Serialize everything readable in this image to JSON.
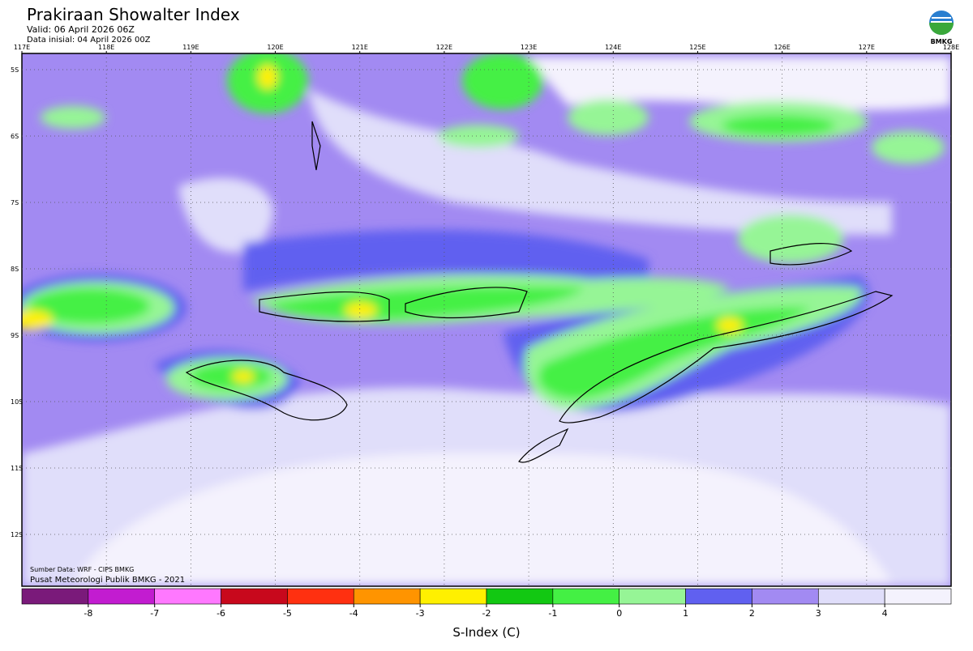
{
  "header": {
    "title": "Prakiraan Showalter Index",
    "valid": "Valid: 06 April 2026 06Z",
    "init": "Data inisial: 04 April 2026 00Z"
  },
  "logo": "BMKG",
  "map": {
    "lon_labels": [
      "117E",
      "118E",
      "119E",
      "120E",
      "121E",
      "122E",
      "123E",
      "124E",
      "125E",
      "126E",
      "127E",
      "128E"
    ],
    "lat_labels": [
      "5S",
      "6S",
      "7S",
      "8S",
      "9S",
      "10S",
      "11S",
      "12S"
    ]
  },
  "footer": {
    "source": "Sumber Data: WRF - CIPS BMKG",
    "credit": "Pusat Meteorologi Publik BMKG - 2021"
  },
  "colorbar": {
    "colors": [
      "#7a1a7a",
      "#c21cd0",
      "#ff78ff",
      "#c8081c",
      "#ff3010",
      "#ff9400",
      "#fff000",
      "#12c812",
      "#44f044",
      "#96f596",
      "#6060f0",
      "#a28af2",
      "#e0defa",
      "#f4f2fd"
    ],
    "ticks": [
      -8,
      -7,
      -6,
      -5,
      -4,
      -3,
      -2,
      -1,
      0,
      1,
      2,
      3,
      4
    ],
    "label": "S-Index (C)"
  }
}
